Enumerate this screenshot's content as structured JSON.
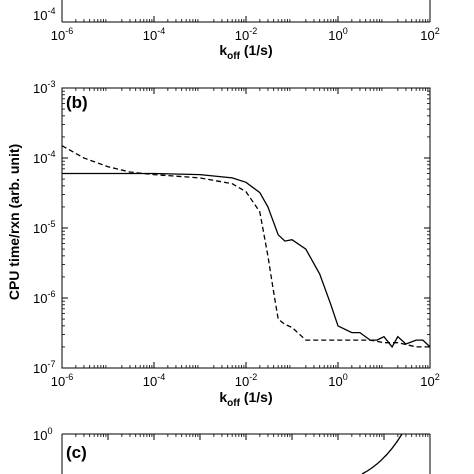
{
  "panel_a": {
    "y_top_tick": {
      "base": "10",
      "exp": "-4"
    },
    "x_ticks": [
      {
        "base": "10",
        "exp": "-6"
      },
      {
        "base": "10",
        "exp": "-4"
      },
      {
        "base": "10",
        "exp": "-2"
      },
      {
        "base": "10",
        "exp": "0"
      },
      {
        "base": "10",
        "exp": "2"
      }
    ],
    "xlabel": {
      "main": "k",
      "sub": "off",
      "unit": " (1/s)"
    }
  },
  "panel_c": {
    "label": "(c)",
    "y_top_tick": {
      "base": "10",
      "exp": "0"
    }
  },
  "chart_data": {
    "type": "line",
    "panel_label": "(b)",
    "xlabel": {
      "main": "k",
      "sub": "off",
      "unit": " (1/s)"
    },
    "ylabel": "CPU time/rxn (arb. unit)",
    "xscale": "log",
    "yscale": "log",
    "xlim": [
      1e-06,
      100
    ],
    "ylim": [
      1e-07,
      0.001
    ],
    "x_ticks": [
      {
        "base": "10",
        "exp": "-6"
      },
      {
        "base": "10",
        "exp": "-4"
      },
      {
        "base": "10",
        "exp": "-2"
      },
      {
        "base": "10",
        "exp": "0"
      },
      {
        "base": "10",
        "exp": "2"
      }
    ],
    "y_ticks": [
      {
        "base": "10",
        "exp": "-7"
      },
      {
        "base": "10",
        "exp": "-6"
      },
      {
        "base": "10",
        "exp": "-5"
      },
      {
        "base": "10",
        "exp": "-4"
      },
      {
        "base": "10",
        "exp": "-3"
      }
    ],
    "series": [
      {
        "style": "solid",
        "x": [
          1e-06,
          1e-05,
          0.0001,
          0.001,
          0.005,
          0.01,
          0.02,
          0.03,
          0.05,
          0.07,
          0.1,
          0.2,
          0.4,
          0.7,
          1,
          2,
          3,
          5,
          7,
          10,
          15,
          20,
          30,
          50,
          70,
          100
        ],
        "y": [
          6e-05,
          6e-05,
          6e-05,
          5.8e-05,
          5.2e-05,
          4.5e-05,
          3.2e-05,
          2e-05,
          8e-06,
          6.5e-06,
          6.8e-06,
          5e-06,
          2.2e-06,
          8e-07,
          4e-07,
          3.2e-07,
          3.2e-07,
          2.5e-07,
          2.5e-07,
          2.8e-07,
          2e-07,
          2.8e-07,
          2.2e-07,
          2.5e-07,
          2.5e-07,
          2e-07
        ]
      },
      {
        "style": "dashed",
        "x": [
          1e-06,
          3e-06,
          1e-05,
          3e-05,
          0.0001,
          0.001,
          0.005,
          0.01,
          0.02,
          0.03,
          0.04,
          0.05,
          0.07,
          0.1,
          0.2,
          0.5,
          1,
          2,
          5,
          10,
          20,
          50,
          100
        ],
        "y": [
          0.00015,
          0.0001,
          7.5e-05,
          6.3e-05,
          5.8e-05,
          5.2e-05,
          4.3e-05,
          3.3e-05,
          1.7e-05,
          4e-06,
          1.2e-06,
          5e-07,
          4.2e-07,
          3.8e-07,
          2.5e-07,
          2.5e-07,
          2.5e-07,
          2.5e-07,
          2.5e-07,
          2.3e-07,
          2.3e-07,
          2e-07,
          2e-07
        ]
      }
    ]
  }
}
